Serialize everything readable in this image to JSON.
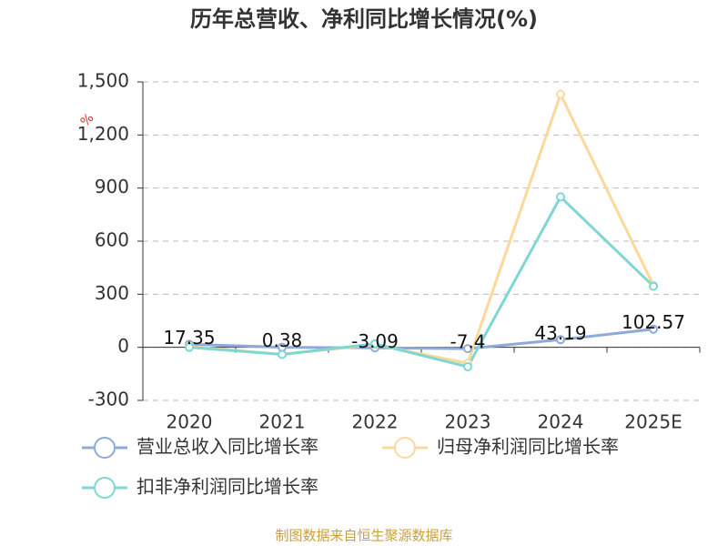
{
  "chart_data": {
    "type": "line",
    "title": "历年总营收、净利同比增长情况(%)",
    "y_label": "%",
    "categories": [
      "2020",
      "2021",
      "2022",
      "2023",
      "2024",
      "2025E"
    ],
    "series": [
      {
        "name": "营业总收入同比增长率",
        "color": "#8eaadb",
        "values": [
          17.35,
          0.38,
          -3.09,
          -7.4,
          43.19,
          102.57
        ]
      },
      {
        "name": "归母净利润同比增长率",
        "color": "#fcd99a",
        "values": [
          5,
          -40,
          15,
          -90,
          1430,
          350
        ]
      },
      {
        "name": "扣非净利润同比增长率",
        "color": "#7fd6d3",
        "values": [
          0,
          -40,
          20,
          -110,
          850,
          345
        ]
      }
    ],
    "ylim": [
      -300,
      1500
    ],
    "yticks": [
      -300,
      0,
      300,
      600,
      900,
      {
        "value": 1200,
        "label": "1,200"
      },
      {
        "value": 1500,
        "label": "1,500"
      }
    ],
    "grid": true,
    "footer": "制图数据来自恒生聚源数据库"
  }
}
